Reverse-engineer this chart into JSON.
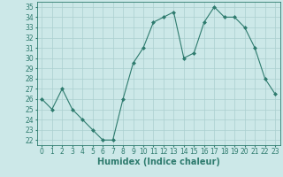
{
  "x": [
    0,
    1,
    2,
    3,
    4,
    5,
    6,
    7,
    8,
    9,
    10,
    11,
    12,
    13,
    14,
    15,
    16,
    17,
    18,
    19,
    20,
    21,
    22,
    23
  ],
  "y": [
    26,
    25,
    27,
    25,
    24,
    23,
    22,
    22,
    26,
    29.5,
    31,
    33.5,
    34,
    34.5,
    30,
    30.5,
    33.5,
    35,
    34,
    34,
    33,
    31,
    28,
    26.5
  ],
  "line_color": "#2e7b6e",
  "marker_color": "#2e7b6e",
  "bg_color": "#cce8e8",
  "grid_color": "#aacfcf",
  "xlabel": "Humidex (Indice chaleur)",
  "xlabel_fontsize": 7,
  "tick_fontsize": 5.5,
  "ylim": [
    21.5,
    35.5
  ],
  "xlim": [
    -0.5,
    23.5
  ],
  "yticks": [
    22,
    23,
    24,
    25,
    26,
    27,
    28,
    29,
    30,
    31,
    32,
    33,
    34,
    35
  ],
  "xticks": [
    0,
    1,
    2,
    3,
    4,
    5,
    6,
    7,
    8,
    9,
    10,
    11,
    12,
    13,
    14,
    15,
    16,
    17,
    18,
    19,
    20,
    21,
    22,
    23
  ]
}
